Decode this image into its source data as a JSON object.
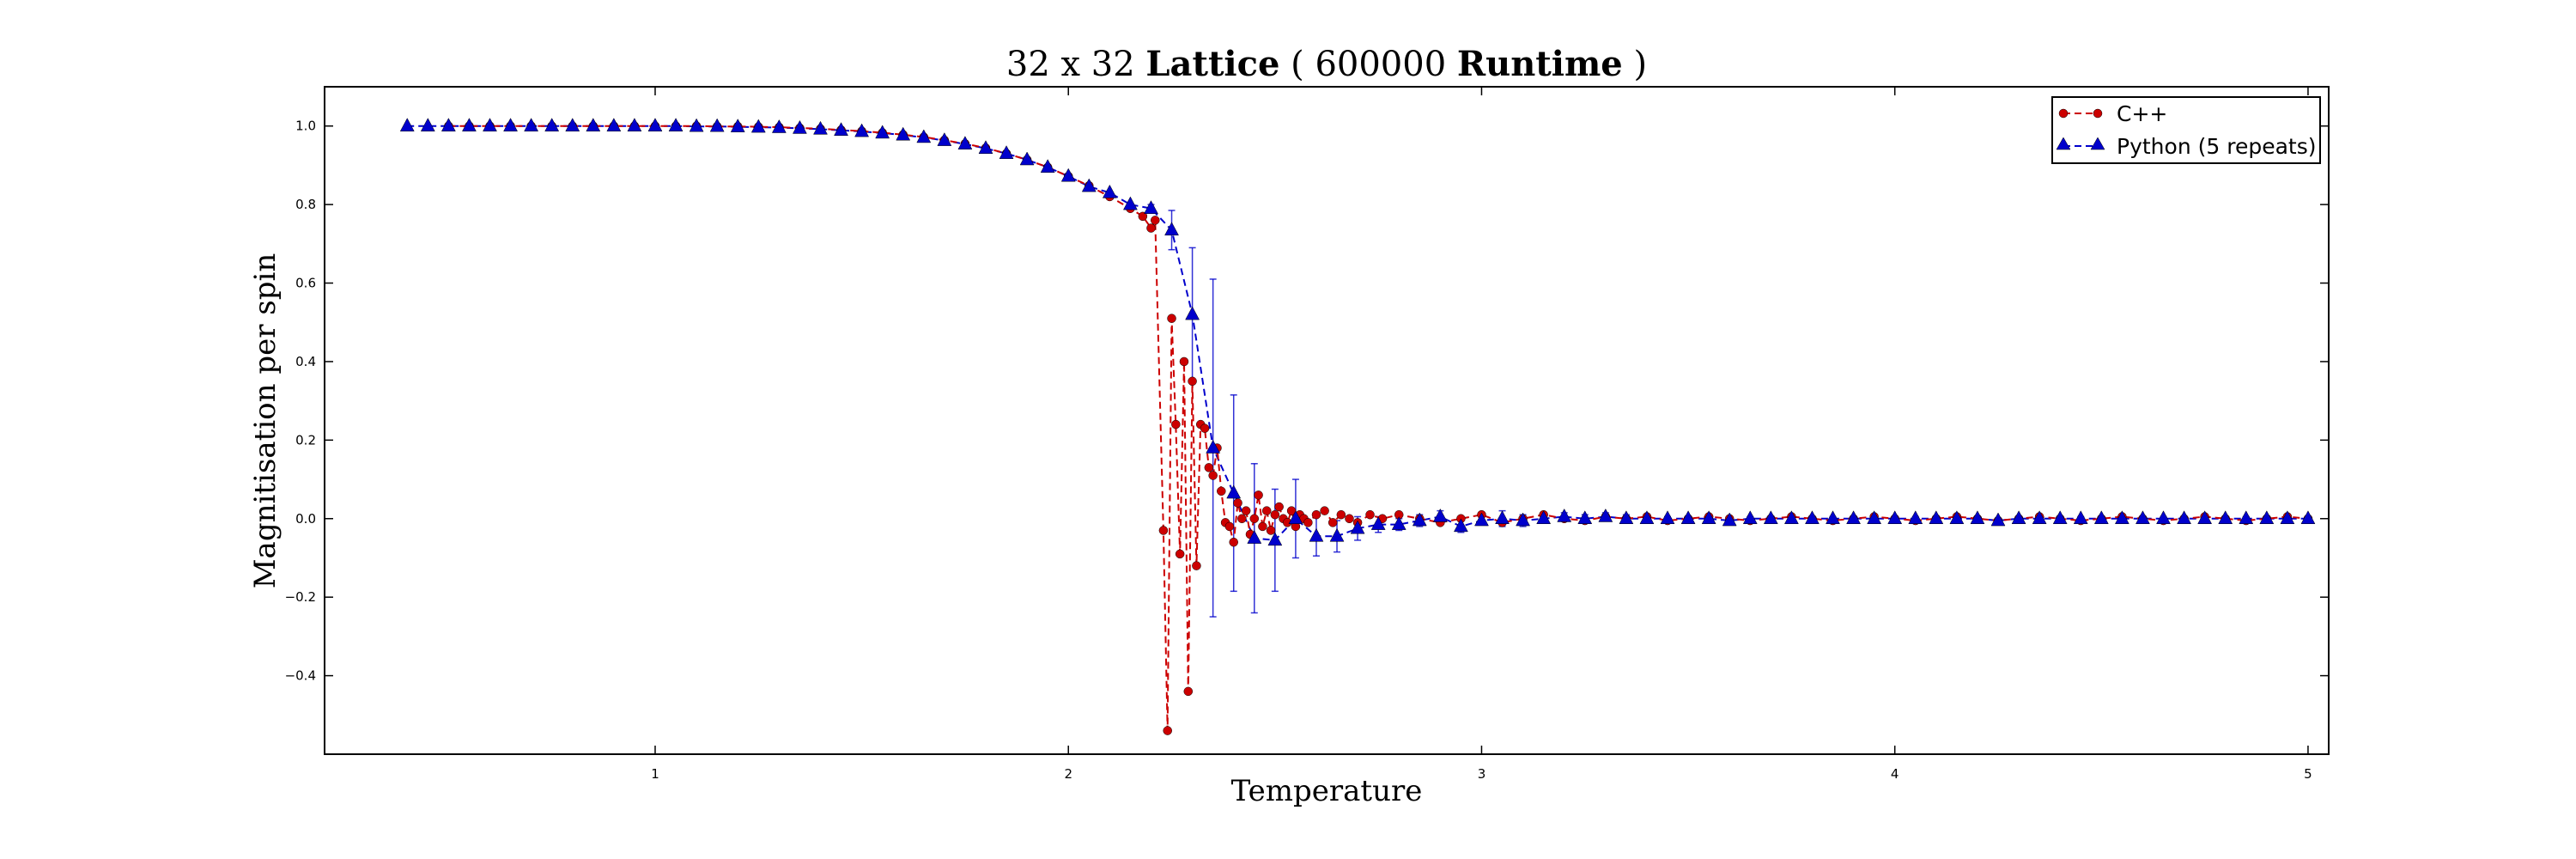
{
  "chart_data": {
    "type": "line",
    "title": {
      "part1": "32 x 32 ",
      "part2": "Lattice",
      "part3": " ( 600000 ",
      "part4": "Runtime",
      "part5": " )"
    },
    "xlabel": "Temperature",
    "ylabel": "Magnitisation per spin",
    "xlim": [
      0.2,
      5.05
    ],
    "ylim": [
      -0.6,
      1.1
    ],
    "xticks": [
      1,
      2,
      3,
      4,
      5
    ],
    "xtick_labels": [
      "1",
      "2",
      "3",
      "4",
      "5"
    ],
    "yticks": [
      -0.4,
      -0.2,
      0.0,
      0.2,
      0.4,
      0.6,
      0.8,
      1.0
    ],
    "ytick_labels": [
      "−0.4",
      "−0.2",
      "0.0",
      "0.2",
      "0.4",
      "0.6",
      "0.8",
      "1.0"
    ],
    "grid": false,
    "legend_position": "top-right",
    "series": [
      {
        "name": "C++",
        "color": "#cc0000",
        "marker": "circle",
        "linestyle": "dashed",
        "points": [
          [
            0.5,
            1.0
          ],
          [
            0.55,
            1.0
          ],
          [
            0.6,
            1.0
          ],
          [
            0.65,
            1.0
          ],
          [
            0.7,
            1.0
          ],
          [
            0.75,
            1.0
          ],
          [
            0.8,
            1.0
          ],
          [
            0.85,
            1.0
          ],
          [
            0.9,
            1.0
          ],
          [
            0.95,
            1.0
          ],
          [
            1.0,
            1.0
          ],
          [
            1.05,
            1.0
          ],
          [
            1.1,
            1.0
          ],
          [
            1.15,
            0.999
          ],
          [
            1.2,
            0.999
          ],
          [
            1.25,
            0.998
          ],
          [
            1.3,
            0.997
          ],
          [
            1.35,
            0.995
          ],
          [
            1.4,
            0.993
          ],
          [
            1.45,
            0.99
          ],
          [
            1.5,
            0.987
          ],
          [
            1.55,
            0.983
          ],
          [
            1.6,
            0.978
          ],
          [
            1.65,
            0.972
          ],
          [
            1.7,
            0.964
          ],
          [
            1.75,
            0.955
          ],
          [
            1.8,
            0.944
          ],
          [
            1.85,
            0.93
          ],
          [
            1.9,
            0.914
          ],
          [
            1.95,
            0.895
          ],
          [
            2.0,
            0.872
          ],
          [
            2.05,
            0.848
          ],
          [
            2.1,
            0.82
          ],
          [
            2.15,
            0.79
          ],
          [
            2.18,
            0.77
          ],
          [
            2.2,
            0.74
          ],
          [
            2.21,
            0.76
          ],
          [
            2.23,
            -0.03
          ],
          [
            2.24,
            -0.54
          ],
          [
            2.25,
            0.51
          ],
          [
            2.26,
            0.24
          ],
          [
            2.27,
            -0.09
          ],
          [
            2.28,
            0.4
          ],
          [
            2.29,
            -0.44
          ],
          [
            2.3,
            0.35
          ],
          [
            2.31,
            -0.12
          ],
          [
            2.32,
            0.24
          ],
          [
            2.33,
            0.23
          ],
          [
            2.34,
            0.13
          ],
          [
            2.35,
            0.11
          ],
          [
            2.36,
            0.18
          ],
          [
            2.37,
            0.07
          ],
          [
            2.38,
            -0.01
          ],
          [
            2.39,
            -0.02
          ],
          [
            2.4,
            -0.06
          ],
          [
            2.41,
            0.04
          ],
          [
            2.42,
            0.0
          ],
          [
            2.43,
            0.02
          ],
          [
            2.44,
            -0.04
          ],
          [
            2.45,
            0.0
          ],
          [
            2.46,
            0.06
          ],
          [
            2.47,
            -0.02
          ],
          [
            2.48,
            0.02
          ],
          [
            2.49,
            -0.03
          ],
          [
            2.5,
            0.01
          ],
          [
            2.51,
            0.03
          ],
          [
            2.52,
            0.0
          ],
          [
            2.53,
            -0.01
          ],
          [
            2.54,
            0.02
          ],
          [
            2.55,
            -0.02
          ],
          [
            2.56,
            0.01
          ],
          [
            2.57,
            0.0
          ],
          [
            2.58,
            -0.01
          ],
          [
            2.6,
            0.01
          ],
          [
            2.62,
            0.02
          ],
          [
            2.64,
            -0.01
          ],
          [
            2.66,
            0.01
          ],
          [
            2.68,
            0.0
          ],
          [
            2.7,
            -0.01
          ],
          [
            2.73,
            0.01
          ],
          [
            2.76,
            0.0
          ],
          [
            2.8,
            0.01
          ],
          [
            2.85,
            0.0
          ],
          [
            2.9,
            -0.01
          ],
          [
            2.95,
            0.0
          ],
          [
            3.0,
            0.01
          ],
          [
            3.05,
            -0.01
          ],
          [
            3.1,
            0.0
          ],
          [
            3.15,
            0.01
          ],
          [
            3.2,
            0.0
          ],
          [
            3.25,
            -0.005
          ],
          [
            3.3,
            0.005
          ],
          [
            3.35,
            0.0
          ],
          [
            3.4,
            0.005
          ],
          [
            3.45,
            -0.005
          ],
          [
            3.5,
            0.0
          ],
          [
            3.55,
            0.005
          ],
          [
            3.6,
            0.0
          ],
          [
            3.65,
            -0.005
          ],
          [
            3.7,
            0.0
          ],
          [
            3.75,
            0.005
          ],
          [
            3.8,
            0.0
          ],
          [
            3.85,
            -0.005
          ],
          [
            3.9,
            0.0
          ],
          [
            3.95,
            0.005
          ],
          [
            4.0,
            0.0
          ],
          [
            4.05,
            -0.005
          ],
          [
            4.1,
            0.0
          ],
          [
            4.15,
            0.005
          ],
          [
            4.2,
            0.0
          ],
          [
            4.25,
            -0.005
          ],
          [
            4.3,
            0.0
          ],
          [
            4.35,
            0.005
          ],
          [
            4.4,
            0.0
          ],
          [
            4.45,
            -0.005
          ],
          [
            4.5,
            0.0
          ],
          [
            4.55,
            0.005
          ],
          [
            4.6,
            0.0
          ],
          [
            4.65,
            -0.005
          ],
          [
            4.7,
            0.0
          ],
          [
            4.75,
            0.005
          ],
          [
            4.8,
            0.0
          ],
          [
            4.85,
            -0.005
          ],
          [
            4.9,
            0.0
          ],
          [
            4.95,
            0.005
          ],
          [
            5.0,
            0.0
          ]
        ]
      },
      {
        "name": "Python (5 repeats)",
        "color": "#0000cc",
        "marker": "triangle",
        "linestyle": "dashed",
        "points": [
          [
            0.4,
            1.0,
            0.0
          ],
          [
            0.45,
            1.0,
            0.0
          ],
          [
            0.5,
            1.0,
            0.0
          ],
          [
            0.55,
            1.0,
            0.0
          ],
          [
            0.6,
            1.0,
            0.0
          ],
          [
            0.65,
            1.0,
            0.0
          ],
          [
            0.7,
            1.0,
            0.0
          ],
          [
            0.75,
            1.0,
            0.0
          ],
          [
            0.8,
            1.0,
            0.0
          ],
          [
            0.85,
            1.0,
            0.0
          ],
          [
            0.9,
            1.0,
            0.0
          ],
          [
            0.95,
            1.0,
            0.0
          ],
          [
            1.0,
            1.0,
            0.0
          ],
          [
            1.05,
            1.0,
            0.0
          ],
          [
            1.1,
            0.999,
            0.0
          ],
          [
            1.15,
            0.999,
            0.0
          ],
          [
            1.2,
            0.998,
            0.0
          ],
          [
            1.25,
            0.997,
            0.0
          ],
          [
            1.3,
            0.996,
            0.0
          ],
          [
            1.35,
            0.994,
            0.0
          ],
          [
            1.4,
            0.992,
            0.0
          ],
          [
            1.45,
            0.989,
            0.0
          ],
          [
            1.5,
            0.986,
            0.0
          ],
          [
            1.55,
            0.982,
            0.0
          ],
          [
            1.6,
            0.977,
            0.0
          ],
          [
            1.65,
            0.971,
            0.0
          ],
          [
            1.7,
            0.963,
            0.0
          ],
          [
            1.75,
            0.954,
            0.0
          ],
          [
            1.8,
            0.943,
            0.0
          ],
          [
            1.85,
            0.93,
            0.0
          ],
          [
            1.9,
            0.914,
            0.0
          ],
          [
            1.95,
            0.895,
            0.0
          ],
          [
            2.0,
            0.872,
            0.0
          ],
          [
            2.05,
            0.846,
            0.0
          ],
          [
            2.1,
            0.83,
            0.0
          ],
          [
            2.15,
            0.8,
            0.0
          ],
          [
            2.2,
            0.79,
            0.01
          ],
          [
            2.25,
            0.735,
            0.05
          ],
          [
            2.3,
            0.52,
            0.17
          ],
          [
            2.35,
            0.18,
            0.43
          ],
          [
            2.4,
            0.065,
            0.25
          ],
          [
            2.45,
            -0.05,
            0.19
          ],
          [
            2.5,
            -0.055,
            0.13
          ],
          [
            2.55,
            0.0,
            0.1
          ],
          [
            2.6,
            -0.045,
            0.05
          ],
          [
            2.65,
            -0.045,
            0.04
          ],
          [
            2.7,
            -0.025,
            0.03
          ],
          [
            2.75,
            -0.015,
            0.02
          ],
          [
            2.8,
            -0.015,
            0.015
          ],
          [
            2.85,
            -0.005,
            0.015
          ],
          [
            2.9,
            0.005,
            0.015
          ],
          [
            2.95,
            -0.02,
            0.015
          ],
          [
            3.0,
            -0.005,
            0.01
          ],
          [
            3.05,
            0.0,
            0.02
          ],
          [
            3.1,
            -0.005,
            0.015
          ],
          [
            3.15,
            0.0,
            0.01
          ],
          [
            3.2,
            0.005,
            0.01
          ],
          [
            3.25,
            0.0,
            0.01
          ],
          [
            3.3,
            0.005,
            0.01
          ],
          [
            3.35,
            0.0,
            0.01
          ],
          [
            3.4,
            0.0,
            0.01
          ],
          [
            3.45,
            0.0,
            0.005
          ],
          [
            3.5,
            0.0,
            0.005
          ],
          [
            3.55,
            0.0,
            0.005
          ],
          [
            3.6,
            -0.005,
            0.005
          ],
          [
            3.65,
            0.0,
            0.005
          ],
          [
            3.7,
            0.0,
            0.005
          ],
          [
            3.75,
            0.0,
            0.005
          ],
          [
            3.8,
            0.0,
            0.005
          ],
          [
            3.85,
            0.0,
            0.005
          ],
          [
            3.9,
            0.0,
            0.005
          ],
          [
            3.95,
            0.0,
            0.005
          ],
          [
            4.0,
            0.0,
            0.005
          ],
          [
            4.05,
            0.0,
            0.005
          ],
          [
            4.1,
            0.0,
            0.005
          ],
          [
            4.15,
            0.0,
            0.005
          ],
          [
            4.2,
            0.0,
            0.005
          ],
          [
            4.25,
            -0.005,
            0.005
          ],
          [
            4.3,
            0.0,
            0.005
          ],
          [
            4.35,
            0.0,
            0.005
          ],
          [
            4.4,
            0.0,
            0.005
          ],
          [
            4.45,
            0.0,
            0.005
          ],
          [
            4.5,
            0.0,
            0.005
          ],
          [
            4.55,
            0.0,
            0.005
          ],
          [
            4.6,
            0.0,
            0.005
          ],
          [
            4.65,
            0.0,
            0.005
          ],
          [
            4.7,
            0.0,
            0.005
          ],
          [
            4.75,
            0.0,
            0.005
          ],
          [
            4.8,
            0.0,
            0.005
          ],
          [
            4.85,
            0.0,
            0.005
          ],
          [
            4.9,
            0.0,
            0.005
          ],
          [
            4.95,
            0.0,
            0.005
          ],
          [
            5.0,
            0.0,
            0.005
          ]
        ]
      }
    ]
  }
}
